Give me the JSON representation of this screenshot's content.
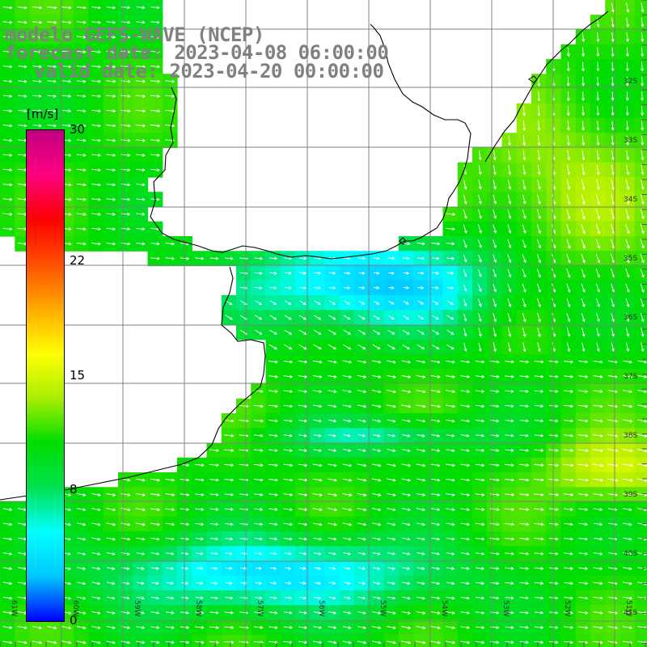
{
  "title": {
    "line1": "modelo GEFS-WAVE (NCEP)",
    "line2": "forecast date: 2023-04-08 06:00:00",
    "line3": "valid date: 2023-04-20 00:00:00"
  },
  "legend": {
    "units": "[m/s]",
    "ticks": [
      {
        "label": "30",
        "value": 30
      },
      {
        "label": "22",
        "value": 22
      },
      {
        "label": "15",
        "value": 15
      },
      {
        "label": "8",
        "value": 8
      },
      {
        "label": "0",
        "value": 0
      }
    ],
    "range": [
      0,
      30
    ],
    "colors": [
      "#0000ff",
      "#00c8ff",
      "#00ffff",
      "#00e050",
      "#00dd00",
      "#aaee00",
      "#ffff00",
      "#ffaa00",
      "#ff5000",
      "#ff0000",
      "#ff0080",
      "#c00080"
    ]
  },
  "map": {
    "region": "Rio de la Plata / South Atlantic",
    "lon_labels": [
      "61W",
      "60W",
      "59W",
      "58W",
      "57W",
      "56W",
      "55W",
      "54W",
      "53W",
      "52W",
      "51W"
    ],
    "lat_labels": [
      "32S",
      "33S",
      "34S",
      "35S",
      "36S",
      "37S",
      "38S",
      "39S",
      "40S",
      "41S"
    ],
    "colors": {
      "land": "#ffffff",
      "grid": "#808080",
      "coast": "#000000",
      "arrow": "#ffffff"
    }
  }
}
